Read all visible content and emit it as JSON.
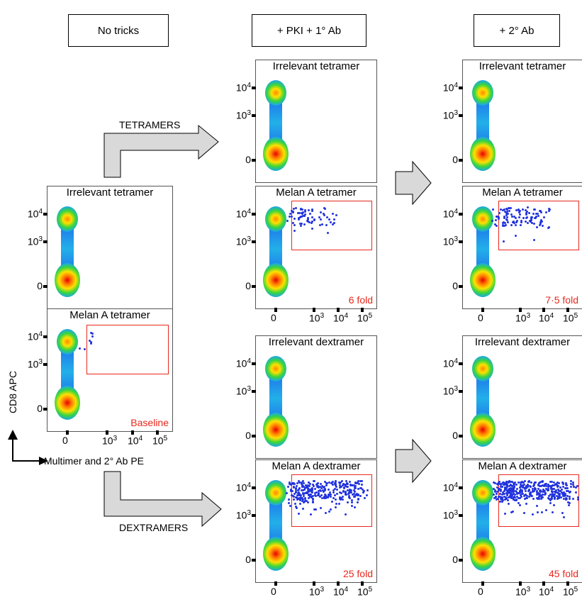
{
  "headers": {
    "no_tricks": "No tricks",
    "pki_1ab": "+ PKI + 1° Ab",
    "ab2": "+ 2° Ab"
  },
  "arrows": {
    "tetramers": "TETRAMERS",
    "dextramers": "DEXTRAMERS"
  },
  "axes": {
    "y_label": "CD8 APC",
    "x_label": "Multimer and 2° Ab PE",
    "y_ticks": [
      "0",
      "10",
      "10"
    ],
    "y_tick_exponents": [
      "",
      "3",
      "4"
    ],
    "x_ticks": [
      "0",
      "10",
      "10",
      "10"
    ],
    "x_tick_exponents": [
      "",
      "3",
      "4",
      "5"
    ]
  },
  "panels": {
    "nt_irr": {
      "title": "Irrelevant tetramer"
    },
    "nt_mel": {
      "title": "Melan A tetramer",
      "fold": "Baseline"
    },
    "p1_irr_tet": {
      "title": "Irrelevant tetramer"
    },
    "p1_mel_tet": {
      "title": "Melan A tetramer",
      "fold": "6 fold"
    },
    "p1_irr_dex": {
      "title": "Irrelevant dextramer"
    },
    "p1_mel_dex": {
      "title": "Melan A dextramer",
      "fold": "25 fold"
    },
    "p2_irr_tet": {
      "title": "Irrelevant tetramer"
    },
    "p2_mel_tet": {
      "title": "Melan A tetramer",
      "fold": "7·5 fold"
    },
    "p2_irr_dex": {
      "title": "Irrelevant dextramer"
    },
    "p2_mel_dex": {
      "title": "Melan A dextramer",
      "fold": "45 fold"
    }
  },
  "colors": {
    "gate": "#e8281c",
    "fold_text": "#e8281c",
    "dots": "#2233dd",
    "arrow_fill": "#d9d9d9"
  }
}
